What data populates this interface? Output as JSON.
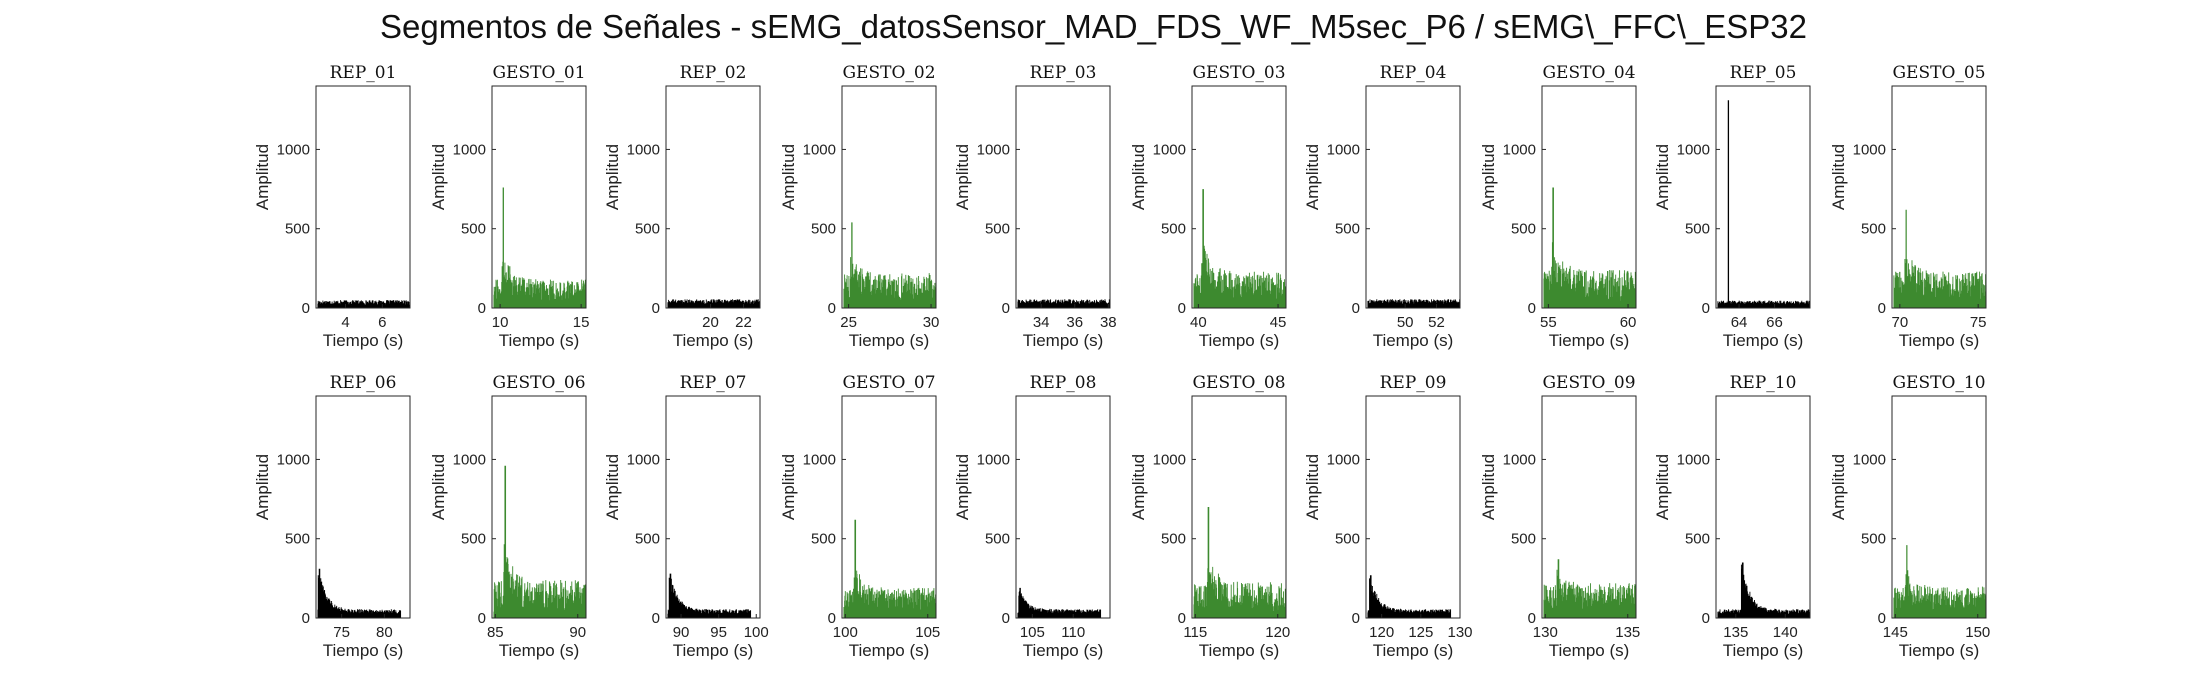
{
  "figure": {
    "title": "Segmentos de Señales - sEMG_datosSensor_MAD_FDS_WF_M5sec_P6 / sEMG\\_FFC\\_ESP32"
  },
  "colors": {
    "rep": "#000000",
    "gesto": "#3d8a2f",
    "axes": "#262626"
  },
  "chart_data": [
    {
      "type": "area",
      "title": "REP_01",
      "kind": "rep",
      "xlabel": "Tiempo (s)",
      "ylabel": "Amplitud",
      "xlim": [
        2.4,
        7.5
      ],
      "ylim": [
        0,
        1400
      ],
      "xticks": [
        4,
        6
      ],
      "yticks": [
        0,
        500,
        1000
      ],
      "grid": false,
      "baseline": 35,
      "noise": 15,
      "peak": null
    },
    {
      "type": "area",
      "title": "GESTO_01",
      "kind": "gesto",
      "xlabel": "Tiempo (s)",
      "ylabel": "Amplitud",
      "xlim": [
        9.5,
        15.3
      ],
      "ylim": [
        0,
        1400
      ],
      "xticks": [
        10,
        15
      ],
      "yticks": [
        0,
        500,
        1000
      ],
      "grid": false,
      "baseline": 110,
      "noise": 70,
      "peak": {
        "x": 10.2,
        "y": 760
      }
    },
    {
      "type": "area",
      "title": "REP_02",
      "kind": "rep",
      "xlabel": "Tiempo (s)",
      "ylabel": "Amplitud",
      "xlim": [
        17.3,
        23.0
      ],
      "ylim": [
        0,
        1400
      ],
      "xticks": [
        20,
        22
      ],
      "yticks": [
        0,
        500,
        1000
      ],
      "grid": false,
      "baseline": 40,
      "noise": 15,
      "peak": null
    },
    {
      "type": "area",
      "title": "GESTO_02",
      "kind": "gesto",
      "xlabel": "Tiempo (s)",
      "ylabel": "Amplitud",
      "xlim": [
        24.6,
        30.3
      ],
      "ylim": [
        0,
        1400
      ],
      "xticks": [
        25,
        30
      ],
      "yticks": [
        0,
        500,
        1000
      ],
      "grid": false,
      "baseline": 130,
      "noise": 90,
      "peak": {
        "x": 25.2,
        "y": 540
      }
    },
    {
      "type": "area",
      "title": "REP_03",
      "kind": "rep",
      "xlabel": "Tiempo (s)",
      "ylabel": "Amplitud",
      "xlim": [
        32.5,
        38.1
      ],
      "ylim": [
        0,
        1400
      ],
      "xticks": [
        34,
        36,
        38
      ],
      "yticks": [
        0,
        500,
        1000
      ],
      "grid": false,
      "baseline": 40,
      "noise": 15,
      "peak": null
    },
    {
      "type": "area",
      "title": "GESTO_03",
      "kind": "gesto",
      "xlabel": "Tiempo (s)",
      "ylabel": "Amplitud",
      "xlim": [
        39.6,
        45.5
      ],
      "ylim": [
        0,
        1400
      ],
      "xticks": [
        40,
        45
      ],
      "yticks": [
        0,
        500,
        1000
      ],
      "grid": false,
      "baseline": 140,
      "noise": 90,
      "peak": {
        "x": 40.3,
        "y": 750
      }
    },
    {
      "type": "area",
      "title": "REP_04",
      "kind": "rep",
      "xlabel": "Tiempo (s)",
      "ylabel": "Amplitud",
      "xlim": [
        47.5,
        53.5
      ],
      "ylim": [
        0,
        1400
      ],
      "xticks": [
        50,
        52
      ],
      "yticks": [
        0,
        500,
        1000
      ],
      "grid": false,
      "baseline": 40,
      "noise": 15,
      "peak": null
    },
    {
      "type": "area",
      "title": "GESTO_04",
      "kind": "gesto",
      "xlabel": "Tiempo (s)",
      "ylabel": "Amplitud",
      "xlim": [
        54.6,
        60.5
      ],
      "ylim": [
        0,
        1400
      ],
      "xticks": [
        55,
        60
      ],
      "yticks": [
        0,
        500,
        1000
      ],
      "grid": false,
      "baseline": 140,
      "noise": 100,
      "peak": {
        "x": 55.3,
        "y": 760
      }
    },
    {
      "type": "area",
      "title": "REP_05",
      "kind": "rep",
      "xlabel": "Tiempo (s)",
      "ylabel": "Amplitud",
      "xlim": [
        62.7,
        68.0
      ],
      "ylim": [
        0,
        1400
      ],
      "xticks": [
        64,
        66
      ],
      "yticks": [
        0,
        500,
        1000
      ],
      "grid": false,
      "baseline": 35,
      "noise": 12,
      "peak": {
        "x": 63.4,
        "y": 1310
      }
    },
    {
      "type": "area",
      "title": "GESTO_05",
      "kind": "gesto",
      "xlabel": "Tiempo (s)",
      "ylabel": "Amplitud",
      "xlim": [
        69.5,
        75.5
      ],
      "ylim": [
        0,
        1400
      ],
      "xticks": [
        70,
        75
      ],
      "yticks": [
        0,
        500,
        1000
      ],
      "grid": false,
      "baseline": 140,
      "noise": 90,
      "peak": {
        "x": 70.4,
        "y": 620
      }
    },
    {
      "type": "area",
      "title": "REP_06",
      "kind": "rep",
      "xlabel": "Tiempo (s)",
      "ylabel": "Amplitud",
      "xlim": [
        72.0,
        83.0
      ],
      "ylim": [
        0,
        1400
      ],
      "xticks": [
        75,
        80
      ],
      "yticks": [
        0,
        500,
        1000
      ],
      "grid": false,
      "baseline": 40,
      "noise": 15,
      "peak": {
        "x": 72.4,
        "y": 310
      }
    },
    {
      "type": "area",
      "title": "GESTO_06",
      "kind": "gesto",
      "xlabel": "Tiempo (s)",
      "ylabel": "Amplitud",
      "xlim": [
        84.8,
        90.5
      ],
      "ylim": [
        0,
        1400
      ],
      "xticks": [
        85,
        90
      ],
      "yticks": [
        0,
        500,
        1000
      ],
      "grid": false,
      "baseline": 140,
      "noise": 100,
      "peak": {
        "x": 85.6,
        "y": 960
      }
    },
    {
      "type": "area",
      "title": "REP_07",
      "kind": "rep",
      "xlabel": "Tiempo (s)",
      "ylabel": "Amplitud",
      "xlim": [
        88.0,
        100.5
      ],
      "ylim": [
        0,
        1400
      ],
      "xticks": [
        90,
        95,
        100
      ],
      "yticks": [
        0,
        500,
        1000
      ],
      "grid": false,
      "baseline": 40,
      "noise": 15,
      "peak": {
        "x": 88.6,
        "y": 280
      }
    },
    {
      "type": "area",
      "title": "GESTO_07",
      "kind": "gesto",
      "xlabel": "Tiempo (s)",
      "ylabel": "Amplitud",
      "xlim": [
        99.8,
        105.5
      ],
      "ylim": [
        0,
        1400
      ],
      "xticks": [
        100,
        105
      ],
      "yticks": [
        0,
        500,
        1000
      ],
      "grid": false,
      "baseline": 120,
      "noise": 70,
      "peak": {
        "x": 100.6,
        "y": 620
      }
    },
    {
      "type": "area",
      "title": "REP_08",
      "kind": "rep",
      "xlabel": "Tiempo (s)",
      "ylabel": "Amplitud",
      "xlim": [
        103.0,
        114.5
      ],
      "ylim": [
        0,
        1400
      ],
      "xticks": [
        105,
        110
      ],
      "yticks": [
        0,
        500,
        1000
      ],
      "grid": false,
      "baseline": 40,
      "noise": 15,
      "peak": {
        "x": 103.5,
        "y": 190
      }
    },
    {
      "type": "area",
      "title": "GESTO_08",
      "kind": "gesto",
      "xlabel": "Tiempo (s)",
      "ylabel": "Amplitud",
      "xlim": [
        114.8,
        120.5
      ],
      "ylim": [
        0,
        1400
      ],
      "xticks": [
        115,
        120
      ],
      "yticks": [
        0,
        500,
        1000
      ],
      "grid": false,
      "baseline": 130,
      "noise": 100,
      "peak": {
        "x": 115.8,
        "y": 700
      }
    },
    {
      "type": "area",
      "title": "REP_09",
      "kind": "rep",
      "xlabel": "Tiempo (s)",
      "ylabel": "Amplitud",
      "xlim": [
        118.0,
        130.0
      ],
      "ylim": [
        0,
        1400
      ],
      "xticks": [
        120,
        125,
        130
      ],
      "yticks": [
        0,
        500,
        1000
      ],
      "grid": false,
      "baseline": 40,
      "noise": 15,
      "peak": {
        "x": 118.6,
        "y": 270
      }
    },
    {
      "type": "area",
      "title": "GESTO_09",
      "kind": "gesto",
      "xlabel": "Tiempo (s)",
      "ylabel": "Amplitud",
      "xlim": [
        129.8,
        135.5
      ],
      "ylim": [
        0,
        1400
      ],
      "xticks": [
        130,
        135
      ],
      "yticks": [
        0,
        500,
        1000
      ],
      "grid": false,
      "baseline": 130,
      "noise": 90,
      "peak": {
        "x": 130.8,
        "y": 370
      }
    },
    {
      "type": "area",
      "title": "REP_10",
      "kind": "rep",
      "xlabel": "Tiempo (s)",
      "ylabel": "Amplitud",
      "xlim": [
        133.0,
        142.5
      ],
      "ylim": [
        0,
        1400
      ],
      "xticks": [
        135,
        140
      ],
      "yticks": [
        0,
        500,
        1000
      ],
      "grid": false,
      "baseline": 40,
      "noise": 15,
      "peak": {
        "x": 135.7,
        "y": 350
      }
    },
    {
      "type": "area",
      "title": "GESTO_10",
      "kind": "gesto",
      "xlabel": "Tiempo (s)",
      "ylabel": "Amplitud",
      "xlim": [
        144.8,
        150.5
      ],
      "ylim": [
        0,
        1400
      ],
      "xticks": [
        145,
        150
      ],
      "yticks": [
        0,
        500,
        1000
      ],
      "grid": false,
      "baseline": 120,
      "noise": 80,
      "peak": {
        "x": 145.7,
        "y": 460
      }
    }
  ]
}
